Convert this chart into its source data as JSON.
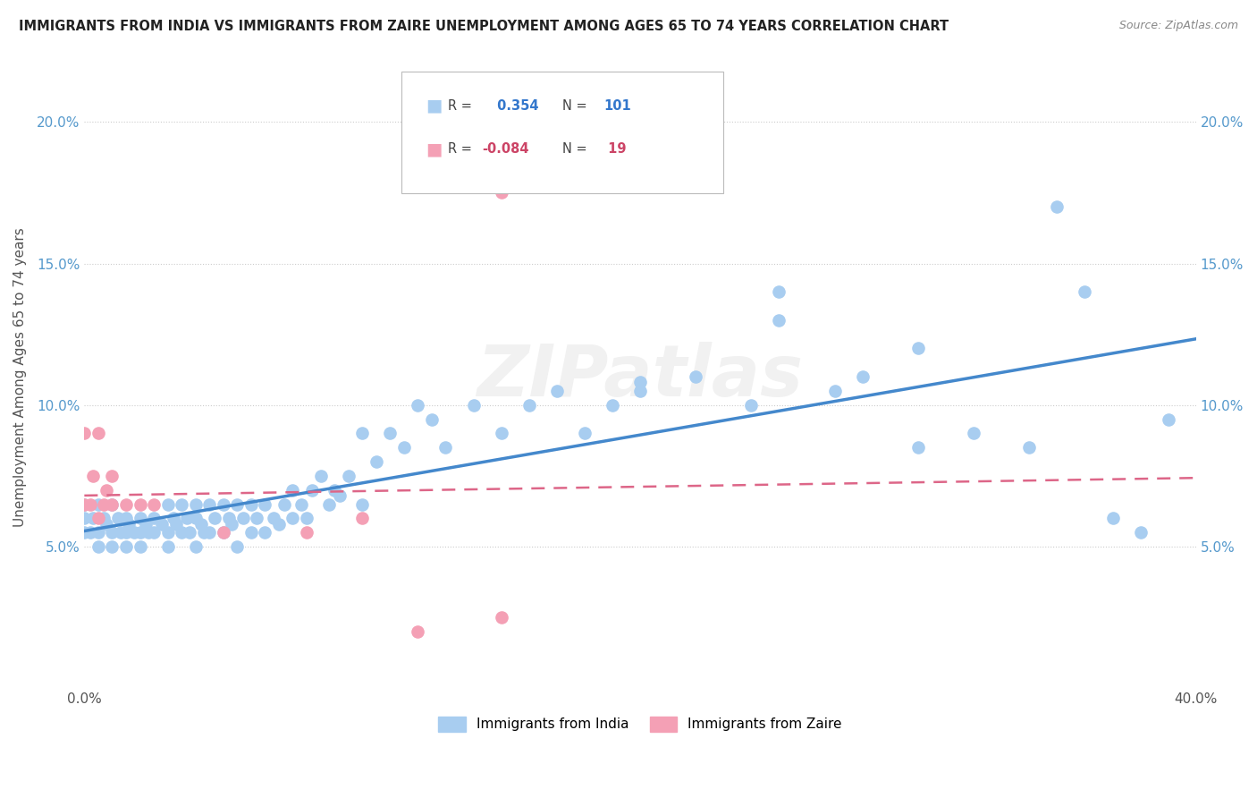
{
  "title": "IMMIGRANTS FROM INDIA VS IMMIGRANTS FROM ZAIRE UNEMPLOYMENT AMONG AGES 65 TO 74 YEARS CORRELATION CHART",
  "source": "Source: ZipAtlas.com",
  "ylabel": "Unemployment Among Ages 65 to 74 years",
  "xlim": [
    0.0,
    0.4
  ],
  "ylim": [
    0.0,
    0.22
  ],
  "india_R": 0.354,
  "india_N": 101,
  "zaire_R": -0.084,
  "zaire_N": 19,
  "india_color": "#a8cdf0",
  "zaire_color": "#f4a0b5",
  "india_line_color": "#4488cc",
  "zaire_line_color": "#dd6688",
  "background_color": "#ffffff",
  "india_scatter_x": [
    0.0,
    0.0,
    0.0,
    0.002,
    0.003,
    0.005,
    0.005,
    0.005,
    0.007,
    0.008,
    0.01,
    0.01,
    0.01,
    0.012,
    0.013,
    0.015,
    0.015,
    0.015,
    0.016,
    0.018,
    0.02,
    0.02,
    0.02,
    0.022,
    0.023,
    0.025,
    0.025,
    0.028,
    0.03,
    0.03,
    0.03,
    0.032,
    0.033,
    0.035,
    0.035,
    0.037,
    0.038,
    0.04,
    0.04,
    0.04,
    0.042,
    0.043,
    0.045,
    0.045,
    0.047,
    0.05,
    0.05,
    0.052,
    0.053,
    0.055,
    0.055,
    0.057,
    0.06,
    0.06,
    0.062,
    0.065,
    0.065,
    0.068,
    0.07,
    0.072,
    0.075,
    0.075,
    0.078,
    0.08,
    0.082,
    0.085,
    0.088,
    0.09,
    0.092,
    0.095,
    0.1,
    0.1,
    0.105,
    0.11,
    0.115,
    0.12,
    0.125,
    0.13,
    0.14,
    0.15,
    0.16,
    0.17,
    0.18,
    0.19,
    0.2,
    0.22,
    0.24,
    0.25,
    0.27,
    0.28,
    0.3,
    0.32,
    0.34,
    0.35,
    0.36,
    0.37,
    0.38,
    0.39,
    0.3,
    0.25,
    0.2
  ],
  "india_scatter_y": [
    0.055,
    0.06,
    0.065,
    0.055,
    0.06,
    0.05,
    0.055,
    0.065,
    0.06,
    0.058,
    0.05,
    0.055,
    0.065,
    0.06,
    0.055,
    0.05,
    0.055,
    0.06,
    0.058,
    0.055,
    0.05,
    0.055,
    0.06,
    0.058,
    0.055,
    0.055,
    0.06,
    0.058,
    0.05,
    0.055,
    0.065,
    0.06,
    0.058,
    0.055,
    0.065,
    0.06,
    0.055,
    0.05,
    0.06,
    0.065,
    0.058,
    0.055,
    0.055,
    0.065,
    0.06,
    0.055,
    0.065,
    0.06,
    0.058,
    0.05,
    0.065,
    0.06,
    0.055,
    0.065,
    0.06,
    0.055,
    0.065,
    0.06,
    0.058,
    0.065,
    0.06,
    0.07,
    0.065,
    0.06,
    0.07,
    0.075,
    0.065,
    0.07,
    0.068,
    0.075,
    0.065,
    0.09,
    0.08,
    0.09,
    0.085,
    0.1,
    0.095,
    0.085,
    0.1,
    0.09,
    0.1,
    0.105,
    0.09,
    0.1,
    0.105,
    0.11,
    0.1,
    0.13,
    0.105,
    0.11,
    0.085,
    0.09,
    0.085,
    0.17,
    0.14,
    0.06,
    0.055,
    0.095,
    0.12,
    0.14,
    0.108
  ],
  "zaire_scatter_x": [
    0.0,
    0.0,
    0.002,
    0.003,
    0.005,
    0.005,
    0.007,
    0.008,
    0.01,
    0.01,
    0.015,
    0.02,
    0.025,
    0.05,
    0.08,
    0.1,
    0.12,
    0.15,
    0.15
  ],
  "zaire_scatter_y": [
    0.065,
    0.09,
    0.065,
    0.075,
    0.06,
    0.09,
    0.065,
    0.07,
    0.065,
    0.075,
    0.065,
    0.065,
    0.065,
    0.055,
    0.055,
    0.06,
    0.02,
    0.025,
    0.175
  ]
}
